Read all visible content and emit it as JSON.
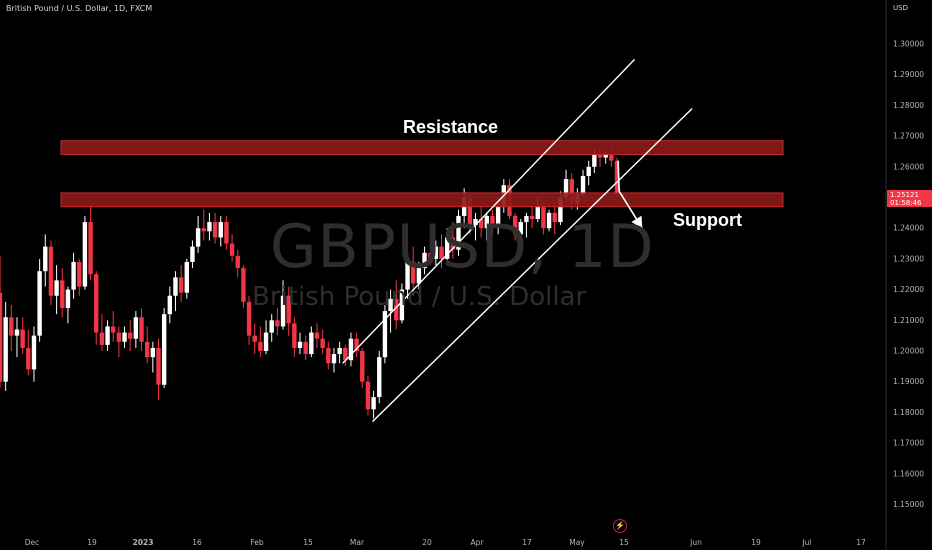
{
  "header": {
    "title": "British Pound / U.S. Dollar, 1D, FXCM"
  },
  "price_axis": {
    "currency": "USD"
  },
  "last_price": {
    "value": "1.25121",
    "countdown": "01:58:46"
  },
  "watermark": {
    "symbol": "GBPUSD, 1D",
    "description": "British Pound / U.S. Dollar"
  },
  "annotations": {
    "resistance": "Resistance",
    "support": "Support"
  },
  "colors": {
    "background": "#000000",
    "up": "#ffffff",
    "down": "#f23645",
    "zone_fill": "#8b1a1a",
    "zone_border": "#c62828",
    "channel": "#ffffff"
  },
  "icons": {
    "bolt": "lightning-icon"
  },
  "chart_data": {
    "type": "candlestick",
    "title": "British Pound / U.S. Dollar, 1D, FXCM",
    "ylim": [
      1.14,
      1.31
    ],
    "y_ticks": [
      "1.30000",
      "1.29000",
      "1.28000",
      "1.27000",
      "1.26000",
      "1.25000",
      "1.24000",
      "1.23000",
      "1.22000",
      "1.21000",
      "1.20000",
      "1.19000",
      "1.18000",
      "1.17000",
      "1.16000",
      "1.15000"
    ],
    "x_ticks": [
      "Dec",
      "19",
      "2023",
      "16",
      "Feb",
      "15",
      "Mar",
      "20",
      "Apr",
      "17",
      "May",
      "15",
      "Jun",
      "19",
      "Jul",
      "17"
    ],
    "zones": [
      {
        "name": "Resistance",
        "from": 1.264,
        "to": 1.2685
      },
      {
        "name": "Support",
        "from": 1.247,
        "to": 1.2515
      }
    ],
    "channel": {
      "upper": {
        "from": {
          "date": "Feb 25",
          "price": 1.196
        },
        "to": {
          "date": "May 16",
          "price": 1.295
        }
      },
      "lower": {
        "from": {
          "date": "Mar 5",
          "price": 1.177
        },
        "to": {
          "date": "May 31",
          "price": 1.279
        }
      }
    },
    "projection": {
      "from": {
        "date": "May 12",
        "price": 1.252
      },
      "to": {
        "date": "May 18",
        "price": 1.24
      }
    },
    "series": [
      {
        "o": 1.219,
        "h": 1.231,
        "l": 1.188,
        "c": 1.19
      },
      {
        "o": 1.19,
        "h": 1.216,
        "l": 1.187,
        "c": 1.211
      },
      {
        "o": 1.211,
        "h": 1.215,
        "l": 1.2,
        "c": 1.205
      },
      {
        "o": 1.205,
        "h": 1.211,
        "l": 1.198,
        "c": 1.207
      },
      {
        "o": 1.207,
        "h": 1.211,
        "l": 1.199,
        "c": 1.201
      },
      {
        "o": 1.201,
        "h": 1.207,
        "l": 1.192,
        "c": 1.194
      },
      {
        "o": 1.194,
        "h": 1.208,
        "l": 1.19,
        "c": 1.205
      },
      {
        "o": 1.205,
        "h": 1.23,
        "l": 1.203,
        "c": 1.226
      },
      {
        "o": 1.226,
        "h": 1.238,
        "l": 1.221,
        "c": 1.234
      },
      {
        "o": 1.234,
        "h": 1.236,
        "l": 1.215,
        "c": 1.218
      },
      {
        "o": 1.218,
        "h": 1.228,
        "l": 1.212,
        "c": 1.223
      },
      {
        "o": 1.223,
        "h": 1.227,
        "l": 1.211,
        "c": 1.214
      },
      {
        "o": 1.214,
        "h": 1.221,
        "l": 1.209,
        "c": 1.22
      },
      {
        "o": 1.22,
        "h": 1.232,
        "l": 1.217,
        "c": 1.229
      },
      {
        "o": 1.229,
        "h": 1.23,
        "l": 1.218,
        "c": 1.221
      },
      {
        "o": 1.221,
        "h": 1.244,
        "l": 1.22,
        "c": 1.242
      },
      {
        "o": 1.242,
        "h": 1.248,
        "l": 1.223,
        "c": 1.225
      },
      {
        "o": 1.225,
        "h": 1.226,
        "l": 1.202,
        "c": 1.206
      },
      {
        "o": 1.206,
        "h": 1.212,
        "l": 1.2,
        "c": 1.202
      },
      {
        "o": 1.202,
        "h": 1.21,
        "l": 1.2,
        "c": 1.208
      },
      {
        "o": 1.208,
        "h": 1.213,
        "l": 1.203,
        "c": 1.206
      },
      {
        "o": 1.206,
        "h": 1.208,
        "l": 1.198,
        "c": 1.203
      },
      {
        "o": 1.203,
        "h": 1.208,
        "l": 1.201,
        "c": 1.206
      },
      {
        "o": 1.206,
        "h": 1.21,
        "l": 1.2,
        "c": 1.204
      },
      {
        "o": 1.204,
        "h": 1.213,
        "l": 1.201,
        "c": 1.211
      },
      {
        "o": 1.211,
        "h": 1.214,
        "l": 1.2,
        "c": 1.203
      },
      {
        "o": 1.203,
        "h": 1.208,
        "l": 1.196,
        "c": 1.198
      },
      {
        "o": 1.198,
        "h": 1.203,
        "l": 1.193,
        "c": 1.201
      },
      {
        "o": 1.201,
        "h": 1.204,
        "l": 1.184,
        "c": 1.189
      },
      {
        "o": 1.189,
        "h": 1.214,
        "l": 1.188,
        "c": 1.212
      },
      {
        "o": 1.212,
        "h": 1.221,
        "l": 1.209,
        "c": 1.218
      },
      {
        "o": 1.218,
        "h": 1.226,
        "l": 1.213,
        "c": 1.224
      },
      {
        "o": 1.224,
        "h": 1.228,
        "l": 1.216,
        "c": 1.219
      },
      {
        "o": 1.219,
        "h": 1.23,
        "l": 1.217,
        "c": 1.229
      },
      {
        "o": 1.229,
        "h": 1.236,
        "l": 1.227,
        "c": 1.234
      },
      {
        "o": 1.234,
        "h": 1.244,
        "l": 1.232,
        "c": 1.24
      },
      {
        "o": 1.24,
        "h": 1.246,
        "l": 1.236,
        "c": 1.239
      },
      {
        "o": 1.239,
        "h": 1.245,
        "l": 1.236,
        "c": 1.242
      },
      {
        "o": 1.242,
        "h": 1.245,
        "l": 1.235,
        "c": 1.237
      },
      {
        "o": 1.237,
        "h": 1.244,
        "l": 1.234,
        "c": 1.242
      },
      {
        "o": 1.242,
        "h": 1.244,
        "l": 1.233,
        "c": 1.235
      },
      {
        "o": 1.235,
        "h": 1.238,
        "l": 1.229,
        "c": 1.231
      },
      {
        "o": 1.231,
        "h": 1.233,
        "l": 1.224,
        "c": 1.227
      },
      {
        "o": 1.227,
        "h": 1.228,
        "l": 1.214,
        "c": 1.216
      },
      {
        "o": 1.216,
        "h": 1.218,
        "l": 1.202,
        "c": 1.205
      },
      {
        "o": 1.205,
        "h": 1.209,
        "l": 1.199,
        "c": 1.203
      },
      {
        "o": 1.203,
        "h": 1.208,
        "l": 1.198,
        "c": 1.2
      },
      {
        "o": 1.2,
        "h": 1.21,
        "l": 1.199,
        "c": 1.206
      },
      {
        "o": 1.206,
        "h": 1.212,
        "l": 1.203,
        "c": 1.21
      },
      {
        "o": 1.21,
        "h": 1.214,
        "l": 1.205,
        "c": 1.208
      },
      {
        "o": 1.208,
        "h": 1.223,
        "l": 1.207,
        "c": 1.218
      },
      {
        "o": 1.218,
        "h": 1.221,
        "l": 1.205,
        "c": 1.209
      },
      {
        "o": 1.209,
        "h": 1.211,
        "l": 1.198,
        "c": 1.201
      },
      {
        "o": 1.201,
        "h": 1.206,
        "l": 1.199,
        "c": 1.203
      },
      {
        "o": 1.203,
        "h": 1.205,
        "l": 1.197,
        "c": 1.199
      },
      {
        "o": 1.199,
        "h": 1.208,
        "l": 1.198,
        "c": 1.206
      },
      {
        "o": 1.206,
        "h": 1.209,
        "l": 1.201,
        "c": 1.204
      },
      {
        "o": 1.204,
        "h": 1.207,
        "l": 1.199,
        "c": 1.201
      },
      {
        "o": 1.201,
        "h": 1.203,
        "l": 1.194,
        "c": 1.196
      },
      {
        "o": 1.196,
        "h": 1.201,
        "l": 1.193,
        "c": 1.199
      },
      {
        "o": 1.199,
        "h": 1.203,
        "l": 1.196,
        "c": 1.201
      },
      {
        "o": 1.201,
        "h": 1.202,
        "l": 1.195,
        "c": 1.197
      },
      {
        "o": 1.197,
        "h": 1.206,
        "l": 1.195,
        "c": 1.204
      },
      {
        "o": 1.204,
        "h": 1.206,
        "l": 1.198,
        "c": 1.2
      },
      {
        "o": 1.2,
        "h": 1.201,
        "l": 1.188,
        "c": 1.19
      },
      {
        "o": 1.19,
        "h": 1.192,
        "l": 1.179,
        "c": 1.181
      },
      {
        "o": 1.181,
        "h": 1.187,
        "l": 1.178,
        "c": 1.185
      },
      {
        "o": 1.185,
        "h": 1.2,
        "l": 1.183,
        "c": 1.198
      },
      {
        "o": 1.198,
        "h": 1.215,
        "l": 1.196,
        "c": 1.213
      },
      {
        "o": 1.213,
        "h": 1.22,
        "l": 1.206,
        "c": 1.217
      },
      {
        "o": 1.217,
        "h": 1.223,
        "l": 1.207,
        "c": 1.21
      },
      {
        "o": 1.21,
        "h": 1.222,
        "l": 1.209,
        "c": 1.22
      },
      {
        "o": 1.22,
        "h": 1.232,
        "l": 1.217,
        "c": 1.229
      },
      {
        "o": 1.229,
        "h": 1.234,
        "l": 1.218,
        "c": 1.222
      },
      {
        "o": 1.222,
        "h": 1.229,
        "l": 1.22,
        "c": 1.227
      },
      {
        "o": 1.227,
        "h": 1.234,
        "l": 1.225,
        "c": 1.232
      },
      {
        "o": 1.232,
        "h": 1.235,
        "l": 1.228,
        "c": 1.23
      },
      {
        "o": 1.23,
        "h": 1.236,
        "l": 1.228,
        "c": 1.234
      },
      {
        "o": 1.234,
        "h": 1.238,
        "l": 1.227,
        "c": 1.23
      },
      {
        "o": 1.23,
        "h": 1.24,
        "l": 1.229,
        "c": 1.237
      },
      {
        "o": 1.237,
        "h": 1.242,
        "l": 1.23,
        "c": 1.233
      },
      {
        "o": 1.233,
        "h": 1.246,
        "l": 1.231,
        "c": 1.244
      },
      {
        "o": 1.244,
        "h": 1.253,
        "l": 1.24,
        "c": 1.25
      },
      {
        "o": 1.25,
        "h": 1.251,
        "l": 1.238,
        "c": 1.241
      },
      {
        "o": 1.241,
        "h": 1.245,
        "l": 1.236,
        "c": 1.243
      },
      {
        "o": 1.243,
        "h": 1.247,
        "l": 1.237,
        "c": 1.24
      },
      {
        "o": 1.24,
        "h": 1.245,
        "l": 1.236,
        "c": 1.244
      },
      {
        "o": 1.244,
        "h": 1.246,
        "l": 1.238,
        "c": 1.24
      },
      {
        "o": 1.24,
        "h": 1.25,
        "l": 1.238,
        "c": 1.247
      },
      {
        "o": 1.247,
        "h": 1.256,
        "l": 1.245,
        "c": 1.254
      },
      {
        "o": 1.254,
        "h": 1.256,
        "l": 1.243,
        "c": 1.244
      },
      {
        "o": 1.244,
        "h": 1.245,
        "l": 1.236,
        "c": 1.238
      },
      {
        "o": 1.238,
        "h": 1.243,
        "l": 1.236,
        "c": 1.242
      },
      {
        "o": 1.242,
        "h": 1.245,
        "l": 1.237,
        "c": 1.244
      },
      {
        "o": 1.244,
        "h": 1.247,
        "l": 1.24,
        "c": 1.243
      },
      {
        "o": 1.243,
        "h": 1.25,
        "l": 1.242,
        "c": 1.247
      },
      {
        "o": 1.247,
        "h": 1.248,
        "l": 1.238,
        "c": 1.24
      },
      {
        "o": 1.24,
        "h": 1.246,
        "l": 1.239,
        "c": 1.245
      },
      {
        "o": 1.245,
        "h": 1.249,
        "l": 1.238,
        "c": 1.242
      },
      {
        "o": 1.242,
        "h": 1.252,
        "l": 1.241,
        "c": 1.25
      },
      {
        "o": 1.25,
        "h": 1.259,
        "l": 1.249,
        "c": 1.256
      },
      {
        "o": 1.256,
        "h": 1.258,
        "l": 1.246,
        "c": 1.248
      },
      {
        "o": 1.248,
        "h": 1.253,
        "l": 1.246,
        "c": 1.251
      },
      {
        "o": 1.251,
        "h": 1.259,
        "l": 1.25,
        "c": 1.257
      },
      {
        "o": 1.257,
        "h": 1.262,
        "l": 1.254,
        "c": 1.26
      },
      {
        "o": 1.26,
        "h": 1.266,
        "l": 1.258,
        "c": 1.264
      },
      {
        "o": 1.264,
        "h": 1.266,
        "l": 1.26,
        "c": 1.263
      },
      {
        "o": 1.263,
        "h": 1.265,
        "l": 1.261,
        "c": 1.264
      },
      {
        "o": 1.264,
        "h": 1.268,
        "l": 1.26,
        "c": 1.262
      },
      {
        "o": 1.262,
        "h": 1.263,
        "l": 1.25,
        "c": 1.2512
      }
    ]
  }
}
